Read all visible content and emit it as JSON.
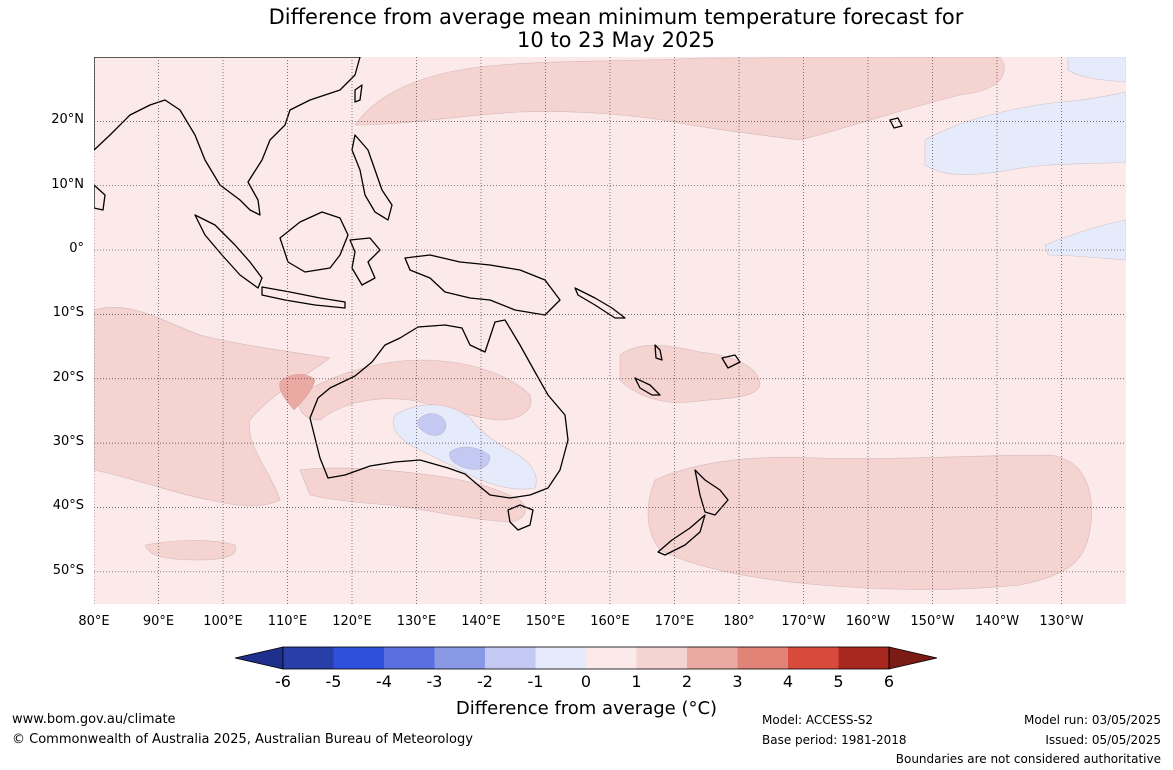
{
  "title": {
    "line1": "Difference from average mean minimum temperature forecast for",
    "line2": "10 to 23 May 2025"
  },
  "map": {
    "extent": {
      "lon_min": 80,
      "lon_max": 240,
      "lat_min": -55,
      "lat_max": 30
    },
    "lat_ticks": [
      {
        "value": 20,
        "label": "20°N"
      },
      {
        "value": 10,
        "label": "10°N"
      },
      {
        "value": 0,
        "label": "0°"
      },
      {
        "value": -10,
        "label": "10°S"
      },
      {
        "value": -20,
        "label": "20°S"
      },
      {
        "value": -30,
        "label": "30°S"
      },
      {
        "value": -40,
        "label": "40°S"
      },
      {
        "value": -50,
        "label": "50°S"
      }
    ],
    "lon_ticks": [
      {
        "value": 80,
        "label": "80°E"
      },
      {
        "value": 90,
        "label": "90°E"
      },
      {
        "value": 100,
        "label": "100°E"
      },
      {
        "value": 110,
        "label": "110°E"
      },
      {
        "value": 120,
        "label": "120°E"
      },
      {
        "value": 130,
        "label": "130°E"
      },
      {
        "value": 140,
        "label": "140°E"
      },
      {
        "value": 150,
        "label": "150°E"
      },
      {
        "value": 160,
        "label": "160°E"
      },
      {
        "value": 170,
        "label": "170°E"
      },
      {
        "value": 180,
        "label": "180°"
      },
      {
        "value": 190,
        "label": "170°W"
      },
      {
        "value": 200,
        "label": "160°W"
      },
      {
        "value": 210,
        "label": "150°W"
      },
      {
        "value": 220,
        "label": "140°W"
      },
      {
        "value": 230,
        "label": "130°W"
      }
    ],
    "colors": {
      "background_0_to_1": "#fbeae9",
      "band_1_to_2": "#f4d3d1",
      "band_2_to_3": "#eaa9a3",
      "band_m1_to_0": "#e6ebfb",
      "band_m2_to_m1": "#c3c9f2",
      "band_m3_to_m2": "#8a99e6",
      "coastline": "#000000",
      "border": "#808080",
      "grid": "#444444"
    }
  },
  "colorbar": {
    "ticks": [
      "-6",
      "-5",
      "-4",
      "-3",
      "-2",
      "-1",
      "0",
      "1",
      "2",
      "3",
      "4",
      "5",
      "6"
    ],
    "colors": [
      "#1f2f8c",
      "#283ea8",
      "#3050dc",
      "#5a70e0",
      "#8a99e6",
      "#c3c9f2",
      "#e6ebfb",
      "#fbeae9",
      "#f4d3d1",
      "#eaa9a3",
      "#e28377",
      "#d84b3c",
      "#a8281f",
      "#7a1c14"
    ],
    "label": "Difference from average (°C)"
  },
  "footer": {
    "website": "www.bom.gov.au/climate",
    "copyright": "© Commonwealth of Australia 2025, Australian Bureau of Meteorology",
    "model": "Model: ACCESS-S2",
    "base_period": "Base period: 1981-2018",
    "model_run": "Model run: 03/05/2025",
    "issued": "Issued: 05/05/2025",
    "disclaimer": "Boundaries are not considered authoritative"
  }
}
